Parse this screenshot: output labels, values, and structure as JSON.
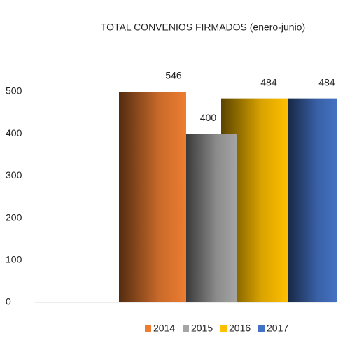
{
  "chart_data": {
    "type": "bar",
    "title": "TOTAL CONVENIOS FIRMADOS  (enero-junio)",
    "categories": [
      null
    ],
    "series": [
      {
        "name": "2014",
        "color": "#ed7d31",
        "values": [
          546
        ]
      },
      {
        "name": "2015",
        "color": "#a5a5a5",
        "values": [
          400
        ]
      },
      {
        "name": "2016",
        "color": "#ffc000",
        "values": [
          484
        ]
      },
      {
        "name": "2017",
        "color": "#4472c4",
        "values": [
          484
        ]
      }
    ],
    "ylim": [
      0,
      500
    ],
    "yticks": [
      0,
      100,
      200,
      300,
      400,
      500
    ],
    "grid": false,
    "legend": "bottom"
  }
}
